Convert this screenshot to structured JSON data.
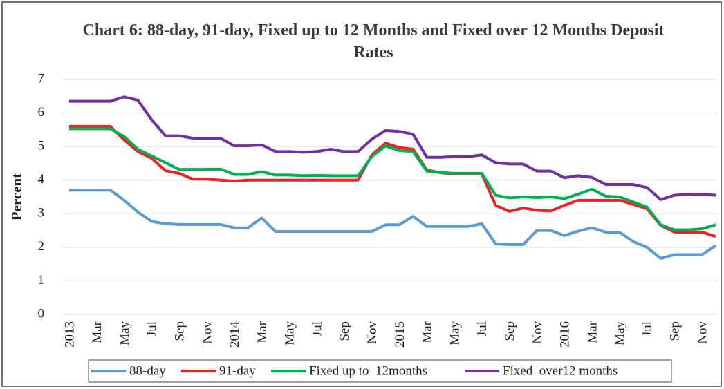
{
  "chart_data": {
    "type": "line",
    "title": "Chart 6: 88-day, 91-day, Fixed up to 12 Months and Fixed over 12 Months Deposit Rates",
    "y_label": "Percent",
    "categories": [
      "2013",
      null,
      "Mar",
      null,
      "May",
      null,
      "Jul",
      null,
      "Sep",
      null,
      "Nov",
      null,
      "2014",
      null,
      "Mar",
      null,
      "May",
      null,
      "Jul",
      null,
      "Sep",
      null,
      "Nov",
      null,
      "2015",
      null,
      "Mar",
      null,
      "May",
      null,
      "Jul",
      null,
      "Sep",
      null,
      "Nov",
      null,
      "2016",
      null,
      "Mar",
      null,
      "May",
      null,
      "Jul",
      null,
      "Sep",
      null,
      "Nov",
      null
    ],
    "series": [
      {
        "name": "88-day",
        "color": "#5b9bd5",
        "values": [
          3.7,
          3.7,
          3.7,
          3.7,
          3.4,
          3.05,
          2.77,
          2.7,
          2.68,
          2.68,
          2.68,
          2.68,
          2.58,
          2.58,
          2.87,
          2.47,
          2.47,
          2.47,
          2.47,
          2.47,
          2.47,
          2.47,
          2.47,
          2.67,
          2.67,
          2.92,
          2.62,
          2.62,
          2.62,
          2.62,
          2.7,
          2.1,
          2.08,
          2.08,
          2.5,
          2.5,
          2.35,
          2.48,
          2.58,
          2.45,
          2.45,
          2.17,
          2.0,
          1.67,
          1.78,
          1.78,
          1.78,
          2.05
        ]
      },
      {
        "name": "91-day",
        "color": "#ed2024",
        "values": [
          5.6,
          5.6,
          5.6,
          5.6,
          5.2,
          4.85,
          4.65,
          4.28,
          4.2,
          4.03,
          4.03,
          4.0,
          3.97,
          4.0,
          4.0,
          4.0,
          4.0,
          4.0,
          4.0,
          4.0,
          4.0,
          4.0,
          4.75,
          5.1,
          4.97,
          4.92,
          4.3,
          4.22,
          4.18,
          4.18,
          4.18,
          3.25,
          3.07,
          3.17,
          3.1,
          3.08,
          3.25,
          3.4,
          3.4,
          3.4,
          3.4,
          3.28,
          3.15,
          2.65,
          2.45,
          2.45,
          2.45,
          2.32
        ]
      },
      {
        "name": "Fixed up to  12months",
        "color": "#00b050",
        "values": [
          5.53,
          5.53,
          5.53,
          5.53,
          5.3,
          4.92,
          4.72,
          4.52,
          4.32,
          4.32,
          4.32,
          4.33,
          4.17,
          4.17,
          4.25,
          4.15,
          4.15,
          4.13,
          4.14,
          4.13,
          4.13,
          4.13,
          4.7,
          5.02,
          4.88,
          4.85,
          4.27,
          4.23,
          4.2,
          4.2,
          4.2,
          3.55,
          3.47,
          3.5,
          3.48,
          3.5,
          3.45,
          3.58,
          3.73,
          3.52,
          3.5,
          3.35,
          3.2,
          2.67,
          2.52,
          2.52,
          2.55,
          2.67
        ]
      },
      {
        "name": "Fixed  over12 months",
        "color": "#7030a0",
        "values": [
          6.35,
          6.35,
          6.35,
          6.35,
          6.48,
          6.38,
          5.8,
          5.32,
          5.32,
          5.25,
          5.25,
          5.25,
          5.02,
          5.02,
          5.05,
          4.85,
          4.85,
          4.83,
          4.85,
          4.92,
          4.85,
          4.85,
          5.22,
          5.48,
          5.45,
          5.37,
          4.68,
          4.68,
          4.7,
          4.7,
          4.75,
          4.52,
          4.48,
          4.48,
          4.27,
          4.27,
          4.07,
          4.13,
          4.08,
          3.87,
          3.87,
          3.87,
          3.78,
          3.42,
          3.55,
          3.58,
          3.58,
          3.55
        ]
      }
    ],
    "ylim": [
      0,
      7
    ],
    "yticks": [
      0,
      1,
      2,
      3,
      4,
      5,
      6,
      7
    ],
    "grid": true,
    "legend": "bottom"
  }
}
